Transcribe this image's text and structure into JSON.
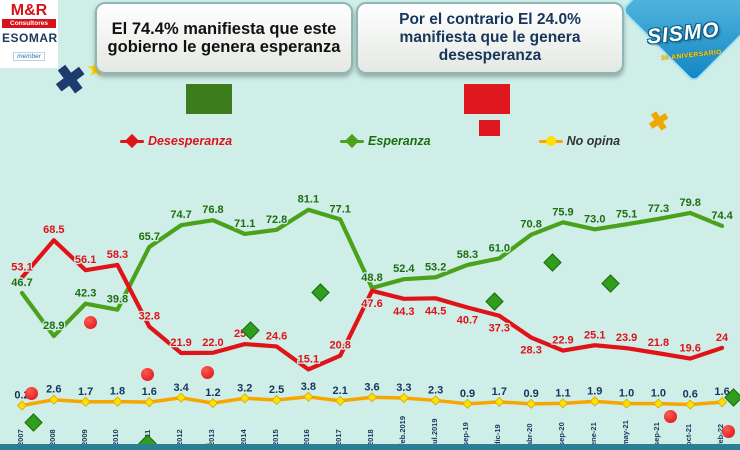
{
  "branding": {
    "mr": {
      "name": "M&R",
      "consultores": "Consultores",
      "esomar": "ESOMAR",
      "member": "member"
    },
    "sismo": {
      "name": "SISMO",
      "anniversary": "30 ANIVERSARIO"
    }
  },
  "headline": {
    "left": "El 74.4% manifiesta que este gobierno le genera esperanza",
    "right": "Por el contrario El 24.0% manifiesta que le genera desesperanza"
  },
  "chart_data": {
    "type": "line",
    "x_labels": [
      "2007",
      "2008",
      "2009",
      "2010",
      "2011",
      "2012",
      "2013",
      "2014",
      "2015",
      "2016",
      "2017",
      "2018",
      "feb.2019",
      "jul.2019",
      "sep-19",
      "dic-19",
      "abr-20",
      "sep-20",
      "ene-21",
      "may-21",
      "sep-21",
      "oct-21",
      "feb-22"
    ],
    "series": [
      {
        "name": "Desesperanza",
        "color": "#e01319",
        "label_color": "#df1119",
        "marker": "diamond",
        "values": [
          "53.1",
          "68.5",
          "56.1",
          "58.3",
          "32.8",
          "21.9",
          "22.0",
          "25.6",
          "24.6",
          "15.1",
          "20.8",
          "47.6",
          "44.3",
          "44.5",
          "40.7",
          "37.3",
          "28.3",
          "22.9",
          "25.1",
          "23.9",
          "21.8",
          "19.6",
          "24"
        ]
      },
      {
        "name": "Esperanza",
        "color": "#4aa21b",
        "label_color": "#1d6e12",
        "marker": "diamond",
        "values": [
          "46.7",
          "28.9",
          "42.3",
          "39.8",
          "65.7",
          "74.7",
          "76.8",
          "71.1",
          "72.8",
          "81.1",
          "77.1",
          "48.8",
          "52.4",
          "53.2",
          "58.3",
          "61.0",
          "70.8",
          "75.9",
          "73.0",
          "75.1",
          "77.3",
          "79.8",
          "74.4"
        ]
      },
      {
        "name": "No opina",
        "color": "#f7a600",
        "label_color": "#14365e",
        "text_color": "#333333",
        "marker": "dot",
        "marker_fill": "#ffe000",
        "values": [
          "0.2",
          "2.6",
          "1.7",
          "1.8",
          "1.6",
          "3.4",
          "1.2",
          "3.2",
          "2.5",
          "3.8",
          "2.1",
          "3.6",
          "3.3",
          "2.3",
          "0.9",
          "1.7",
          "0.9",
          "1.1",
          "1.9",
          "1.0",
          "1.0",
          "0.6",
          "1.6"
        ]
      }
    ],
    "ylim": [
      0,
      90
    ],
    "grid": false,
    "legend_position": "top"
  }
}
